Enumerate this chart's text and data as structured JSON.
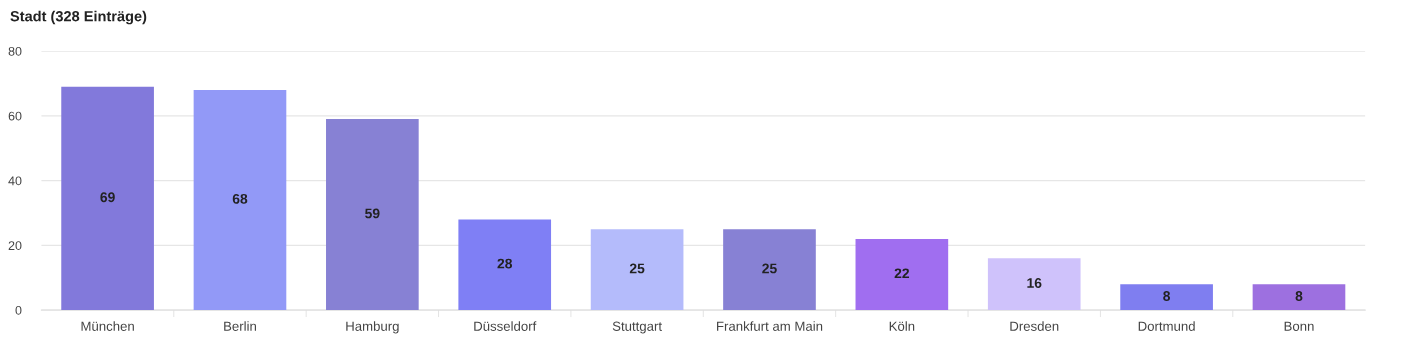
{
  "chart_data": {
    "type": "bar",
    "title": "Stadt (328 Einträge)",
    "categories": [
      "München",
      "Berlin",
      "Hamburg",
      "Düsseldorf",
      "Stuttgart",
      "Frankfurt am Main",
      "Köln",
      "Dresden",
      "Dortmund",
      "Bonn"
    ],
    "values": [
      69,
      68,
      59,
      28,
      25,
      25,
      22,
      16,
      8,
      8
    ],
    "colors": [
      "#8279db",
      "#9299f7",
      "#8781d4",
      "#7f7ff5",
      "#b4bbfb",
      "#8781d4",
      "#a06ef0",
      "#cfc2fb",
      "#7f7ef0",
      "#9d70e0"
    ],
    "ylim": [
      0,
      80
    ],
    "yticks": [
      0,
      20,
      40,
      60,
      80
    ],
    "grid": "y",
    "data_labels": true
  }
}
